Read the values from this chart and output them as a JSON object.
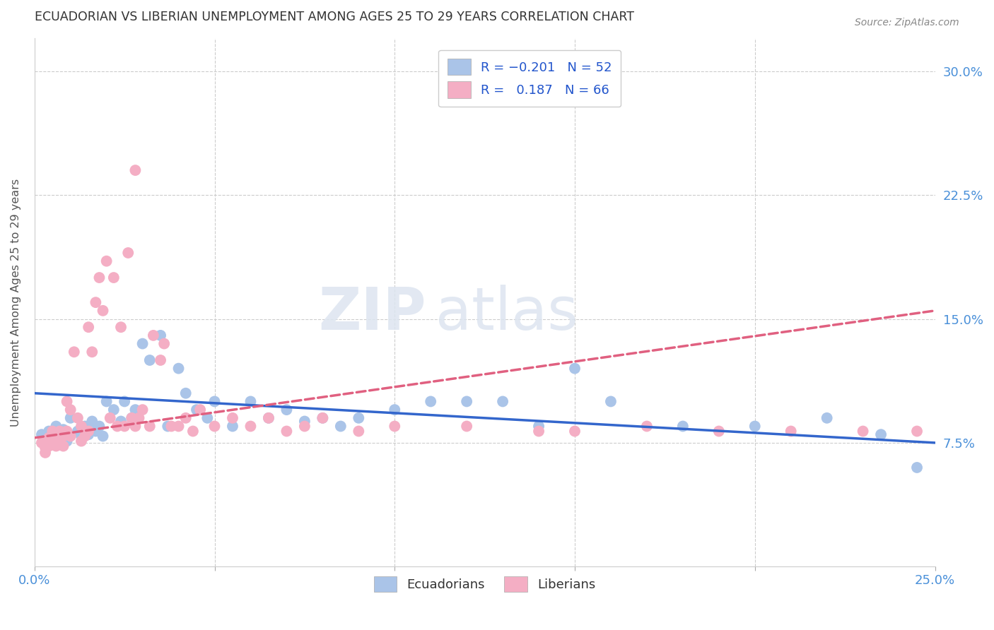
{
  "title": "ECUADORIAN VS LIBERIAN UNEMPLOYMENT AMONG AGES 25 TO 29 YEARS CORRELATION CHART",
  "source": "Source: ZipAtlas.com",
  "ylabel": "Unemployment Among Ages 25 to 29 years",
  "ytick_labels": [
    "7.5%",
    "15.0%",
    "22.5%",
    "30.0%"
  ],
  "ytick_values": [
    0.075,
    0.15,
    0.225,
    0.3
  ],
  "xlim": [
    0.0,
    0.25
  ],
  "ylim": [
    0.0,
    0.32
  ],
  "ecu_color": "#aac4e8",
  "lib_color": "#f4aec4",
  "ecu_line_color": "#3366cc",
  "lib_line_color": "#e06080",
  "tick_color": "#4a90d9",
  "grid_color": "#cccccc",
  "title_color": "#333333",
  "background_color": "#ffffff",
  "ecu_scatter_x": [
    0.002,
    0.003,
    0.004,
    0.005,
    0.006,
    0.007,
    0.008,
    0.009,
    0.01,
    0.012,
    0.013,
    0.014,
    0.015,
    0.016,
    0.017,
    0.018,
    0.019,
    0.02,
    0.022,
    0.024,
    0.025,
    0.027,
    0.028,
    0.03,
    0.032,
    0.035,
    0.037,
    0.04,
    0.042,
    0.045,
    0.048,
    0.05,
    0.055,
    0.06,
    0.065,
    0.07,
    0.075,
    0.08,
    0.085,
    0.09,
    0.1,
    0.11,
    0.12,
    0.13,
    0.14,
    0.15,
    0.16,
    0.18,
    0.2,
    0.22,
    0.235,
    0.245
  ],
  "ecu_scatter_y": [
    0.08,
    0.075,
    0.082,
    0.078,
    0.085,
    0.079,
    0.083,
    0.076,
    0.09,
    0.082,
    0.079,
    0.085,
    0.08,
    0.088,
    0.082,
    0.085,
    0.079,
    0.1,
    0.095,
    0.088,
    0.1,
    0.09,
    0.095,
    0.135,
    0.125,
    0.14,
    0.085,
    0.12,
    0.105,
    0.095,
    0.09,
    0.1,
    0.085,
    0.1,
    0.09,
    0.095,
    0.088,
    0.09,
    0.085,
    0.09,
    0.095,
    0.1,
    0.1,
    0.1,
    0.085,
    0.12,
    0.1,
    0.085,
    0.085,
    0.09,
    0.08,
    0.06
  ],
  "lib_scatter_x": [
    0.002,
    0.003,
    0.003,
    0.004,
    0.004,
    0.005,
    0.005,
    0.006,
    0.006,
    0.007,
    0.007,
    0.008,
    0.008,
    0.009,
    0.009,
    0.01,
    0.01,
    0.011,
    0.012,
    0.013,
    0.013,
    0.014,
    0.015,
    0.015,
    0.016,
    0.017,
    0.018,
    0.019,
    0.02,
    0.021,
    0.022,
    0.023,
    0.024,
    0.025,
    0.026,
    0.027,
    0.028,
    0.029,
    0.03,
    0.032,
    0.033,
    0.035,
    0.036,
    0.038,
    0.04,
    0.042,
    0.044,
    0.046,
    0.05,
    0.055,
    0.06,
    0.065,
    0.07,
    0.075,
    0.08,
    0.09,
    0.1,
    0.12,
    0.14,
    0.15,
    0.17,
    0.19,
    0.21,
    0.23,
    0.245,
    0.028
  ],
  "lib_scatter_y": [
    0.075,
    0.072,
    0.069,
    0.078,
    0.073,
    0.082,
    0.076,
    0.079,
    0.073,
    0.082,
    0.076,
    0.079,
    0.073,
    0.1,
    0.082,
    0.079,
    0.095,
    0.13,
    0.09,
    0.076,
    0.085,
    0.079,
    0.082,
    0.145,
    0.13,
    0.16,
    0.175,
    0.155,
    0.185,
    0.09,
    0.175,
    0.085,
    0.145,
    0.085,
    0.19,
    0.09,
    0.085,
    0.09,
    0.095,
    0.085,
    0.14,
    0.125,
    0.135,
    0.085,
    0.085,
    0.09,
    0.082,
    0.095,
    0.085,
    0.09,
    0.085,
    0.09,
    0.082,
    0.085,
    0.09,
    0.082,
    0.085,
    0.085,
    0.082,
    0.082,
    0.085,
    0.082,
    0.082,
    0.082,
    0.082,
    0.24
  ],
  "ecu_trendline_x": [
    0.0,
    0.25
  ],
  "ecu_trendline_y": [
    0.105,
    0.075
  ],
  "lib_trendline_x": [
    0.0,
    0.25
  ],
  "lib_trendline_y": [
    0.078,
    0.155
  ]
}
